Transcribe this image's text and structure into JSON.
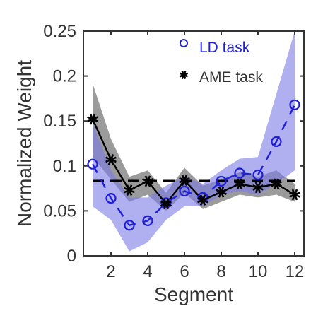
{
  "chart_data": {
    "type": "line",
    "xlabel": "Segment",
    "ylabel": "Normalized Weight",
    "xlim": [
      0.5,
      12.5
    ],
    "ylim": [
      0,
      0.25
    ],
    "xticks": [
      2,
      4,
      6,
      8,
      10,
      12
    ],
    "yticks": [
      0,
      0.05,
      0.1,
      0.15,
      0.2,
      0.25
    ],
    "ytick_labels": [
      "0",
      "0.05",
      "0.1",
      "0.15",
      "0.2",
      "0.25"
    ],
    "x": [
      1,
      2,
      3,
      4,
      5,
      6,
      7,
      8,
      9,
      10,
      11,
      12
    ],
    "reference_line": {
      "y": 0.0833,
      "style": "dashed",
      "color": "#000000"
    },
    "legend_position": "top-right",
    "series": [
      {
        "name": "LD task",
        "marker": "circle",
        "line_style": "dashed",
        "color": "#1f1fd6",
        "band_color": "#7b7be8",
        "values": [
          0.102,
          0.064,
          0.034,
          0.039,
          0.059,
          0.072,
          0.065,
          0.083,
          0.092,
          0.09,
          0.127,
          0.168
        ],
        "band_low": [
          0.055,
          0.04,
          0.005,
          0.015,
          0.04,
          0.055,
          0.055,
          0.068,
          0.072,
          0.068,
          0.08,
          0.095
        ],
        "band_high": [
          0.148,
          0.095,
          0.065,
          0.065,
          0.078,
          0.088,
          0.08,
          0.095,
          0.108,
          0.11,
          0.18,
          0.25
        ]
      },
      {
        "name": "AME task",
        "marker": "asterisk",
        "line_style": "solid",
        "color": "#000000",
        "band_color": "#7a7a7a",
        "values": [
          0.152,
          0.107,
          0.073,
          0.083,
          0.058,
          0.084,
          0.062,
          0.071,
          0.08,
          0.076,
          0.08,
          0.068
        ],
        "band_low": [
          0.11,
          0.085,
          0.06,
          0.068,
          0.05,
          0.07,
          0.052,
          0.06,
          0.068,
          0.065,
          0.068,
          0.06
        ],
        "band_high": [
          0.192,
          0.13,
          0.088,
          0.095,
          0.07,
          0.098,
          0.078,
          0.085,
          0.093,
          0.088,
          0.095,
          0.08
        ]
      }
    ]
  }
}
